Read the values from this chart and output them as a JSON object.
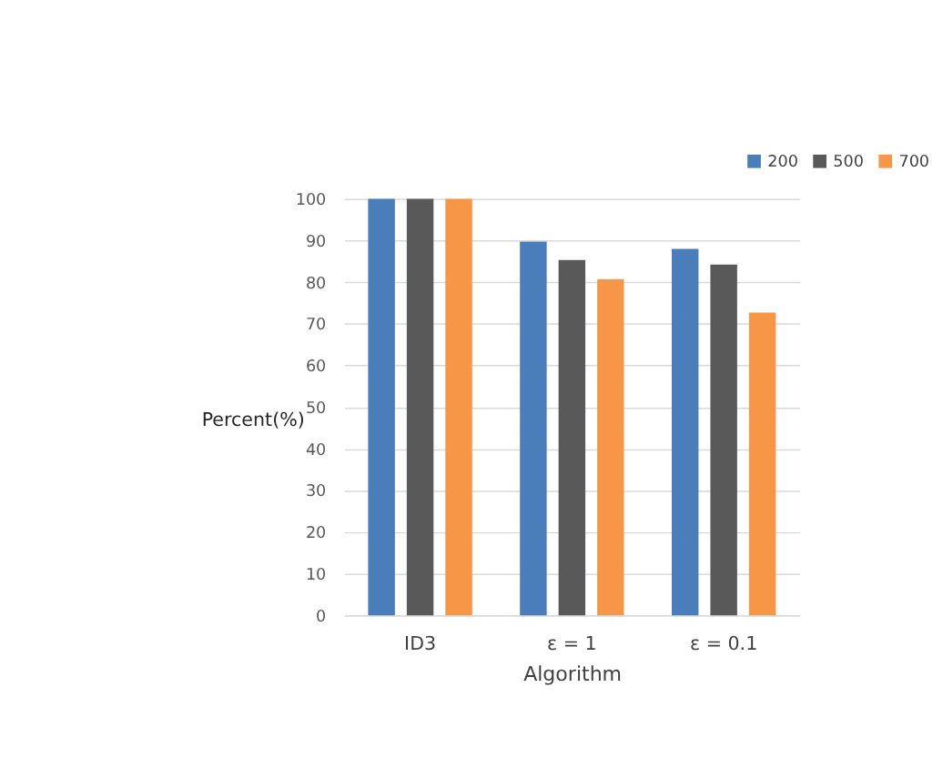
{
  "chart_data": {
    "type": "bar",
    "xlabel": "Algorithm",
    "ylabel": "Percent(%)",
    "categories": [
      "ID3",
      "ε = 1",
      "ε = 0.1"
    ],
    "series": [
      {
        "name": "200",
        "color": "#4a7ebb",
        "values": [
          100,
          89.7,
          88
        ]
      },
      {
        "name": "500",
        "color": "#595959",
        "values": [
          100,
          85.3,
          84.2
        ]
      },
      {
        "name": "700",
        "color": "#f79646",
        "values": [
          100,
          80.7,
          72.7
        ]
      }
    ],
    "ylim": [
      0,
      100
    ],
    "yticks": [
      0,
      10,
      20,
      30,
      40,
      50,
      60,
      70,
      80,
      90,
      100
    ],
    "grid": "y",
    "legend": "top right"
  }
}
